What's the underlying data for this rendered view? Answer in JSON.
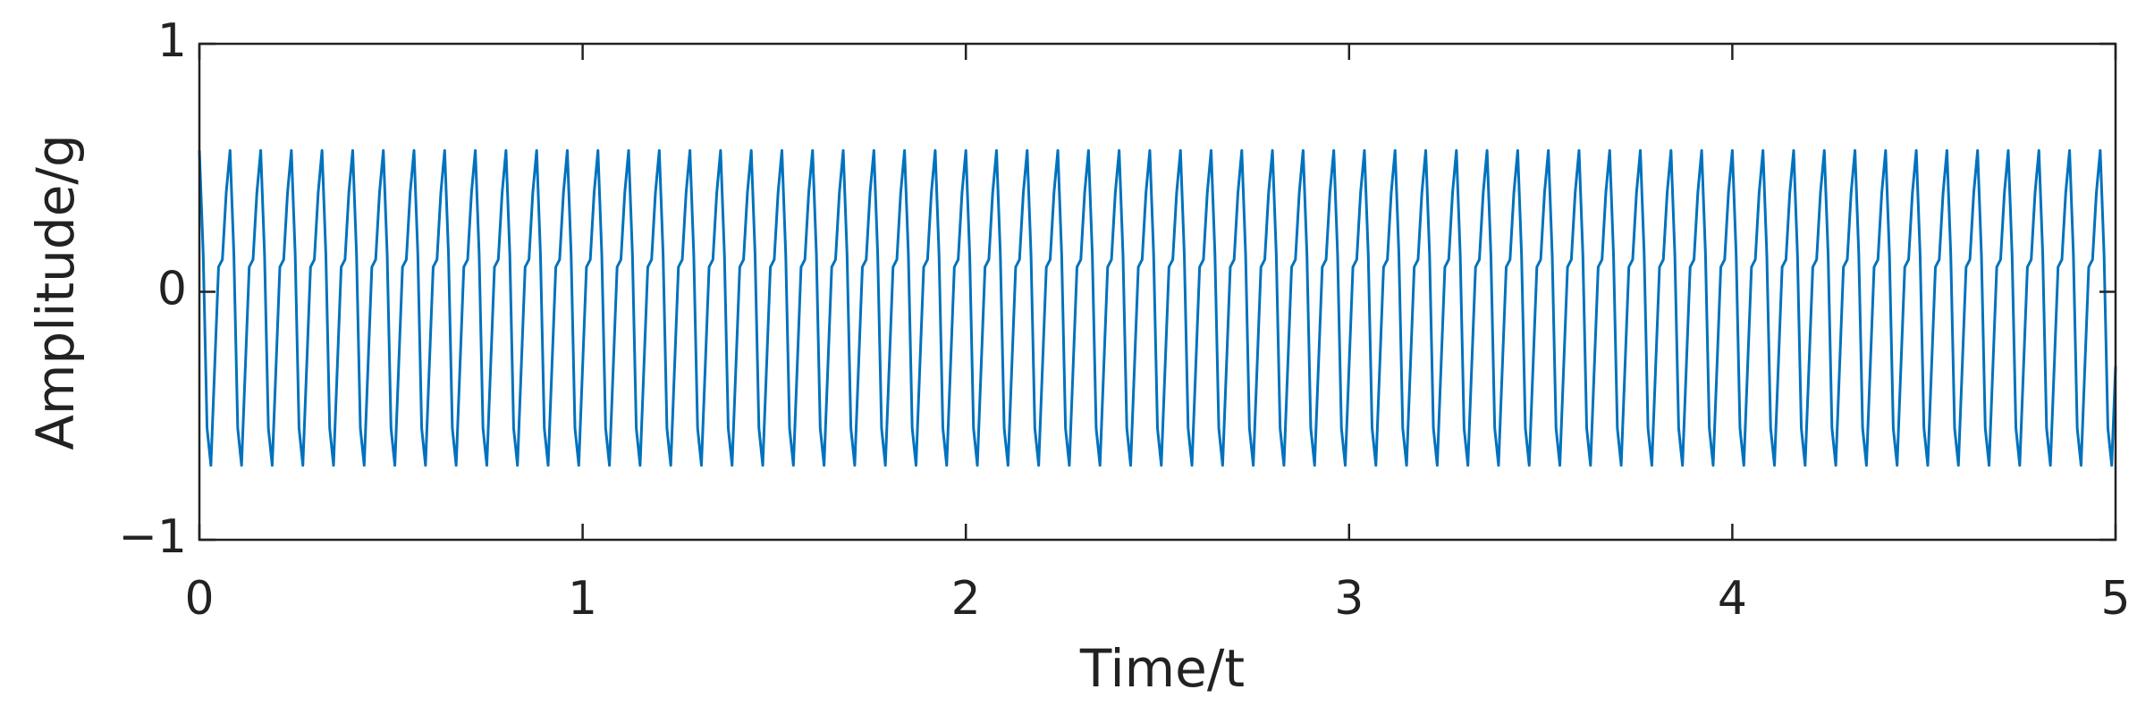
{
  "chart_data": {
    "type": "line",
    "xlabel": "Time/t",
    "ylabel": "Amplitude/g",
    "color": "#0072bd",
    "xlim": [
      0,
      5
    ],
    "xticks": [
      0,
      1,
      2,
      3,
      4,
      5
    ],
    "ylim": [
      -1,
      1
    ],
    "yticks": [
      {
        "value": -1,
        "label": "−1"
      },
      0,
      1
    ],
    "x": [
      0,
      0.01,
      0.02,
      0.03,
      0.04,
      0.05,
      0.06,
      0.07,
      0.08,
      0.09,
      0.1,
      0.11,
      0.12,
      0.13,
      0.14,
      0.15,
      0.16,
      0.17,
      0.18,
      0.19,
      0.2,
      0.21,
      0.22,
      0.23,
      0.24,
      0.25,
      0.26,
      0.27,
      0.28,
      0.29,
      0.3,
      0.31,
      0.32,
      0.33,
      0.34,
      0.35,
      0.36,
      0.37,
      0.38,
      0.39,
      0.4,
      0.41,
      0.42,
      0.43,
      0.44,
      0.45,
      0.46,
      0.47,
      0.48,
      0.49,
      0.5,
      0.51,
      0.52,
      0.53,
      0.54,
      0.55,
      0.56,
      0.57,
      0.58,
      0.59,
      0.6,
      0.61,
      0.62,
      0.63,
      0.64,
      0.65,
      0.66,
      0.67,
      0.68,
      0.69,
      0.7,
      0.71,
      0.72,
      0.73,
      0.74,
      0.75,
      0.76,
      0.77,
      0.78,
      0.79,
      0.8,
      0.81,
      0.82,
      0.83,
      0.84,
      0.85,
      0.86,
      0.87,
      0.88,
      0.89,
      0.9,
      0.91,
      0.92,
      0.93,
      0.94,
      0.95,
      0.96,
      0.97,
      0.98,
      0.99,
      1,
      1.01,
      1.02,
      1.03,
      1.04,
      1.05,
      1.06,
      1.07,
      1.08,
      1.09,
      1.1,
      1.11,
      1.12,
      1.13,
      1.14,
      1.15,
      1.16,
      1.17,
      1.18,
      1.19,
      1.2,
      1.21,
      1.22,
      1.23,
      1.24,
      1.25,
      1.26,
      1.27,
      1.28,
      1.29,
      1.3,
      1.31,
      1.32,
      1.33,
      1.34,
      1.35,
      1.36,
      1.37,
      1.38,
      1.39,
      1.4,
      1.41,
      1.42,
      1.43,
      1.44,
      1.45,
      1.46,
      1.47,
      1.48,
      1.49,
      1.5,
      1.51,
      1.52,
      1.53,
      1.54,
      1.55,
      1.56,
      1.57,
      1.58,
      1.59,
      1.6,
      1.61,
      1.62,
      1.63,
      1.64,
      1.65,
      1.66,
      1.67,
      1.68,
      1.69,
      1.7,
      1.71,
      1.72,
      1.73,
      1.74,
      1.75,
      1.76,
      1.77,
      1.78,
      1.79,
      1.8,
      1.81,
      1.82,
      1.83,
      1.84,
      1.85,
      1.86,
      1.87,
      1.88,
      1.89,
      1.9,
      1.91,
      1.92,
      1.93,
      1.94,
      1.95,
      1.96,
      1.97,
      1.98,
      1.99,
      2,
      2.01,
      2.02,
      2.03,
      2.04,
      2.05,
      2.06,
      2.07,
      2.08,
      2.09,
      2.1,
      2.11,
      2.12,
      2.13,
      2.14,
      2.15,
      2.16,
      2.17,
      2.18,
      2.19,
      2.2,
      2.21,
      2.22,
      2.23,
      2.24,
      2.25,
      2.26,
      2.27,
      2.28,
      2.29,
      2.3,
      2.31,
      2.32,
      2.33,
      2.34,
      2.35,
      2.36,
      2.37,
      2.38,
      2.39,
      2.4,
      2.41,
      2.42,
      2.43,
      2.44,
      2.45,
      2.46,
      2.47,
      2.48,
      2.49,
      2.5,
      2.51,
      2.52,
      2.53,
      2.54,
      2.55,
      2.56,
      2.57,
      2.58,
      2.59,
      2.6,
      2.61,
      2.62,
      2.63,
      2.64,
      2.65,
      2.66,
      2.67,
      2.68,
      2.69,
      2.7,
      2.71,
      2.72,
      2.73,
      2.74,
      2.75,
      2.76,
      2.77,
      2.78,
      2.79,
      2.8,
      2.81,
      2.82,
      2.83,
      2.84,
      2.85,
      2.86,
      2.87,
      2.88,
      2.89,
      2.9,
      2.91,
      2.92,
      2.93,
      2.94,
      2.95,
      2.96,
      2.97,
      2.98,
      2.99,
      3,
      3.01,
      3.02,
      3.03,
      3.04,
      3.05,
      3.06,
      3.07,
      3.08,
      3.09,
      3.1,
      3.11,
      3.12,
      3.13,
      3.14,
      3.15,
      3.16,
      3.17,
      3.18,
      3.19,
      3.2,
      3.21,
      3.22,
      3.23,
      3.24,
      3.25,
      3.26,
      3.27,
      3.28,
      3.29,
      3.3,
      3.31,
      3.32,
      3.33,
      3.34,
      3.35,
      3.36,
      3.37,
      3.38,
      3.39,
      3.4,
      3.41,
      3.42,
      3.43,
      3.44,
      3.45,
      3.46,
      3.47,
      3.48,
      3.49,
      3.5,
      3.51,
      3.52,
      3.53,
      3.54,
      3.55,
      3.56,
      3.57,
      3.58,
      3.59,
      3.6,
      3.61,
      3.62,
      3.63,
      3.64,
      3.65,
      3.66,
      3.67,
      3.68,
      3.69,
      3.7,
      3.71,
      3.72,
      3.73,
      3.74,
      3.75,
      3.76,
      3.77,
      3.78,
      3.79,
      3.8,
      3.81,
      3.82,
      3.83,
      3.84,
      3.85,
      3.86,
      3.87,
      3.88,
      3.89,
      3.9,
      3.91,
      3.92,
      3.93,
      3.94,
      3.95,
      3.96,
      3.97,
      3.98,
      3.99,
      4,
      4.01,
      4.02,
      4.03,
      4.04,
      4.05,
      4.06,
      4.07,
      4.08,
      4.09,
      4.1,
      4.11,
      4.12,
      4.13,
      4.14,
      4.15,
      4.16,
      4.17,
      4.18,
      4.19,
      4.2,
      4.21,
      4.22,
      4.23,
      4.24,
      4.25,
      4.26,
      4.27,
      4.28,
      4.29,
      4.3,
      4.31,
      4.32,
      4.33,
      4.34,
      4.35,
      4.36,
      4.37,
      4.38,
      4.39,
      4.4,
      4.41,
      4.42,
      4.43,
      4.44,
      4.45,
      4.46,
      4.47,
      4.48,
      4.49,
      4.5,
      4.51,
      4.52,
      4.53,
      4.54,
      4.55,
      4.56,
      4.57,
      4.58,
      4.59,
      4.6,
      4.61,
      4.62,
      4.63,
      4.64,
      4.65,
      4.66,
      4.67,
      4.68,
      4.69,
      4.7,
      4.71,
      4.72,
      4.73,
      4.74,
      4.75,
      4.76,
      4.77,
      4.78,
      4.79,
      4.8,
      4.81,
      4.82,
      4.83,
      4.84,
      4.85,
      4.86,
      4.87,
      4.88,
      4.89,
      4.9,
      4.91,
      4.92,
      4.93,
      4.94,
      4.95,
      4.96,
      4.97,
      4.98,
      4.99,
      5
    ],
    "values": [
      0.57,
      0.15,
      -0.55,
      -0.7,
      -0.3,
      0.1,
      0.13,
      0.4,
      0.57,
      0.15,
      -0.55,
      -0.7,
      -0.3,
      0.1,
      0.13,
      0.4,
      0.57,
      0.15,
      -0.55,
      -0.7,
      -0.3,
      0.1,
      0.13,
      0.4,
      0.57,
      0.15,
      -0.55,
      -0.7,
      -0.3,
      0.1,
      0.13,
      0.4,
      0.57,
      0.15,
      -0.55,
      -0.7,
      -0.3,
      0.1,
      0.13,
      0.4,
      0.57,
      0.15,
      -0.55,
      -0.7,
      -0.3,
      0.1,
      0.13,
      0.4,
      0.57,
      0.15,
      -0.55,
      -0.7,
      -0.3,
      0.1,
      0.13,
      0.4,
      0.57,
      0.15,
      -0.55,
      -0.7,
      -0.3,
      0.1,
      0.13,
      0.4,
      0.57,
      0.15,
      -0.55,
      -0.7,
      -0.3,
      0.1,
      0.13,
      0.4,
      0.57,
      0.15,
      -0.55,
      -0.7,
      -0.3,
      0.1,
      0.13,
      0.4,
      0.57,
      0.15,
      -0.55,
      -0.7,
      -0.3,
      0.1,
      0.13,
      0.4,
      0.57,
      0.15,
      -0.55,
      -0.7,
      -0.3,
      0.1,
      0.13,
      0.4,
      0.57,
      0.15,
      -0.55,
      -0.7,
      -0.3,
      0.1,
      0.13,
      0.4,
      0.57,
      0.15,
      -0.55,
      -0.7,
      -0.3,
      0.1,
      0.13,
      0.4,
      0.57,
      0.15,
      -0.55,
      -0.7,
      -0.3,
      0.1,
      0.13,
      0.4,
      0.57,
      0.15,
      -0.55,
      -0.7,
      -0.3,
      0.1,
      0.13,
      0.4,
      0.57,
      0.15,
      -0.55,
      -0.7,
      -0.3,
      0.1,
      0.13,
      0.4,
      0.57,
      0.15,
      -0.55,
      -0.7,
      -0.3,
      0.1,
      0.13,
      0.4,
      0.57,
      0.15,
      -0.55,
      -0.7,
      -0.3,
      0.1,
      0.13,
      0.4,
      0.57,
      0.15,
      -0.55,
      -0.7,
      -0.3,
      0.1,
      0.13,
      0.4,
      0.57,
      0.15,
      -0.55,
      -0.7,
      -0.3,
      0.1,
      0.13,
      0.4,
      0.57,
      0.15,
      -0.55,
      -0.7,
      -0.3,
      0.1,
      0.13,
      0.4,
      0.57,
      0.15,
      -0.55,
      -0.7,
      -0.3,
      0.1,
      0.13,
      0.4,
      0.57,
      0.15,
      -0.55,
      -0.7,
      -0.3,
      0.1,
      0.13,
      0.4,
      0.57,
      0.15,
      -0.55,
      -0.7,
      -0.3,
      0.1,
      0.13,
      0.4,
      0.57,
      0.15,
      -0.55,
      -0.7,
      -0.3,
      0.1,
      0.13,
      0.4,
      0.57,
      0.15,
      -0.55,
      -0.7,
      -0.3,
      0.1,
      0.13,
      0.4,
      0.57,
      0.15,
      -0.55,
      -0.7,
      -0.3,
      0.1,
      0.13,
      0.4,
      0.57,
      0.15,
      -0.55,
      -0.7,
      -0.3,
      0.1,
      0.13,
      0.4,
      0.57,
      0.15,
      -0.55,
      -0.7,
      -0.3,
      0.1,
      0.13,
      0.4,
      0.57,
      0.15,
      -0.55,
      -0.7,
      -0.3,
      0.1,
      0.13,
      0.4,
      0.57,
      0.15,
      -0.55,
      -0.7,
      -0.3,
      0.1,
      0.13,
      0.4,
      0.57,
      0.15,
      -0.55,
      -0.7,
      -0.3,
      0.1,
      0.13,
      0.4,
      0.57,
      0.15,
      -0.55,
      -0.7,
      -0.3,
      0.1,
      0.13,
      0.4,
      0.57,
      0.15,
      -0.55,
      -0.7,
      -0.3,
      0.1,
      0.13,
      0.4,
      0.57,
      0.15,
      -0.55,
      -0.7,
      -0.3,
      0.1,
      0.13,
      0.4,
      0.57,
      0.15,
      -0.55,
      -0.7,
      -0.3,
      0.1,
      0.13,
      0.4,
      0.57,
      0.15,
      -0.55,
      -0.7,
      -0.3,
      0.1,
      0.13,
      0.4,
      0.57,
      0.15,
      -0.55,
      -0.7,
      -0.3,
      0.1,
      0.13,
      0.4,
      0.57,
      0.15,
      -0.55,
      -0.7,
      -0.3,
      0.1,
      0.13,
      0.4,
      0.57,
      0.15,
      -0.55,
      -0.7,
      -0.3,
      0.1,
      0.13,
      0.4,
      0.57,
      0.15,
      -0.55,
      -0.7,
      -0.3,
      0.1,
      0.13,
      0.4,
      0.57,
      0.15,
      -0.55,
      -0.7,
      -0.3,
      0.1,
      0.13,
      0.4,
      0.57,
      0.15,
      -0.55,
      -0.7,
      -0.3,
      0.1,
      0.13,
      0.4,
      0.57,
      0.15,
      -0.55,
      -0.7,
      -0.3,
      0.1,
      0.13,
      0.4,
      0.57,
      0.15,
      -0.55,
      -0.7,
      -0.3,
      0.1,
      0.13,
      0.4,
      0.57,
      0.15,
      -0.55,
      -0.7,
      -0.3,
      0.1,
      0.13,
      0.4,
      0.57,
      0.15,
      -0.55,
      -0.7,
      -0.3,
      0.1,
      0.13,
      0.4,
      0.57,
      0.15,
      -0.55,
      -0.7,
      -0.3,
      0.1,
      0.13,
      0.4,
      0.57,
      0.15,
      -0.55,
      -0.7,
      -0.3,
      0.1,
      0.13,
      0.4,
      0.57,
      0.15,
      -0.55,
      -0.7,
      -0.3,
      0.1,
      0.13,
      0.4,
      0.57,
      0.15,
      -0.55,
      -0.7,
      -0.3,
      0.1,
      0.13,
      0.4,
      0.57,
      0.15,
      -0.55,
      -0.7,
      -0.3,
      0.1,
      0.13,
      0.4,
      0.57,
      0.15,
      -0.55,
      -0.7,
      -0.3,
      0.1,
      0.13,
      0.4,
      0.57,
      0.15,
      -0.55,
      -0.7,
      -0.3,
      0.1,
      0.13,
      0.4,
      0.57,
      0.15,
      -0.55,
      -0.7,
      -0.3,
      0.1,
      0.13,
      0.4,
      0.57,
      0.15,
      -0.55,
      -0.7,
      -0.3,
      0.1,
      0.13,
      0.4,
      0.57,
      0.15,
      -0.55,
      -0.7,
      -0.3,
      0.1,
      0.13,
      0.4,
      0.57,
      0.15,
      -0.55,
      -0.7,
      -0.3,
      0.1,
      0.13,
      0.4,
      0.57,
      0.15,
      -0.55,
      -0.7,
      -0.3,
      0.1,
      0.13,
      0.4,
      0.57,
      0.15,
      -0.55,
      -0.7,
      -0.3,
      0.1,
      0.13,
      0.4,
      0.57,
      0.15,
      -0.55,
      -0.7,
      -0.3,
      0.1,
      0.13,
      0.4,
      0.57,
      0.15,
      -0.55,
      -0.7,
      -0.3
    ]
  }
}
